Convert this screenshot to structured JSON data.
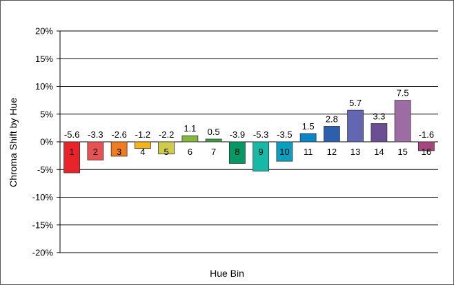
{
  "chart_data": {
    "type": "bar",
    "title": "",
    "xlabel": "Hue Bin",
    "ylabel": "Chroma Shift by Hue",
    "categories": [
      "1",
      "2",
      "3",
      "4",
      "5",
      "6",
      "7",
      "8",
      "9",
      "10",
      "11",
      "12",
      "13",
      "14",
      "15",
      "16"
    ],
    "values": [
      -5.6,
      -3.3,
      -2.6,
      -1.2,
      -2.2,
      1.1,
      0.5,
      -3.9,
      -5.3,
      -3.5,
      1.5,
      2.8,
      5.7,
      3.3,
      7.5,
      -1.6
    ],
    "data_labels": [
      "-5.6",
      "-3.3",
      "-2.6",
      "-1.2",
      "-2.2",
      "1.1",
      "0.5",
      "-3.9",
      "-5.3",
      "-3.5",
      "1.5",
      "2.8",
      "5.7",
      "3.3",
      "7.5",
      "-1.6"
    ],
    "colors": [
      "#e8242a",
      "#e65353",
      "#ef7d1f",
      "#f3b31b",
      "#cfcb4c",
      "#82b83d",
      "#3fa23f",
      "#079865",
      "#17b8a6",
      "#0a9fbf",
      "#0a86c6",
      "#2e5fad",
      "#6366b1",
      "#6b4e94",
      "#9e6ca4",
      "#a5467f"
    ],
    "ylim": [
      -20,
      20
    ],
    "yticks": [
      20,
      15,
      10,
      5,
      0,
      -5,
      -10,
      -15,
      -20
    ],
    "ytick_labels": [
      "20%",
      "15%",
      "10%",
      "5%",
      "0%",
      "-5%",
      "-10%",
      "-15%",
      "-20%"
    ],
    "grid": true,
    "legend": "none"
  }
}
